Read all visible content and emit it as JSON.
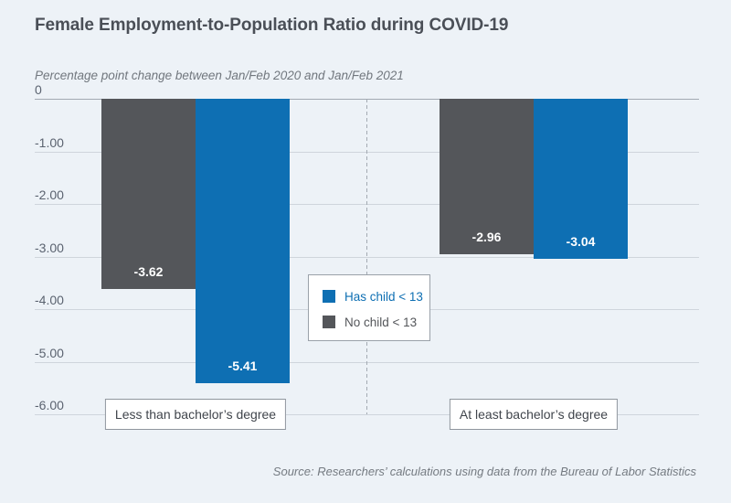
{
  "chart_data": {
    "type": "bar",
    "title": "Female Employment-to-Population Ratio during COVID-19",
    "subtitle": "Percentage point change between Jan/Feb 2020 and Jan/Feb 2021",
    "source": "Source: Researchers’ calculations using data from the Bureau of Labor Statistics",
    "categories": [
      "Less than bachelor’s degree",
      "At least bachelor’s degree"
    ],
    "series": [
      {
        "name": "Has child < 13",
        "color": "#0e6fb3",
        "values": [
          -5.41,
          -3.04
        ]
      },
      {
        "name": "No child < 13",
        "color": "#54565a",
        "values": [
          -3.62,
          -2.96
        ]
      }
    ],
    "bar_value_labels": [
      [
        "-3.62",
        "-5.41"
      ],
      [
        "-2.96",
        "-3.04"
      ]
    ],
    "ylim": [
      -6,
      0
    ],
    "yticks": [
      "0",
      "-1.00",
      "-2.00",
      "-3.00",
      "-4.00",
      "-5.00",
      "-6.00"
    ],
    "grid": true,
    "legend_position": "center",
    "group_divider": "dashed"
  },
  "colors": {
    "background": "#edf2f7",
    "accent_blue": "#0e6fb3",
    "dark_gray": "#54565a",
    "gridline": "#cfd5dc",
    "zero_line": "#a2aab3",
    "bar_label_text": "#ffffff"
  }
}
